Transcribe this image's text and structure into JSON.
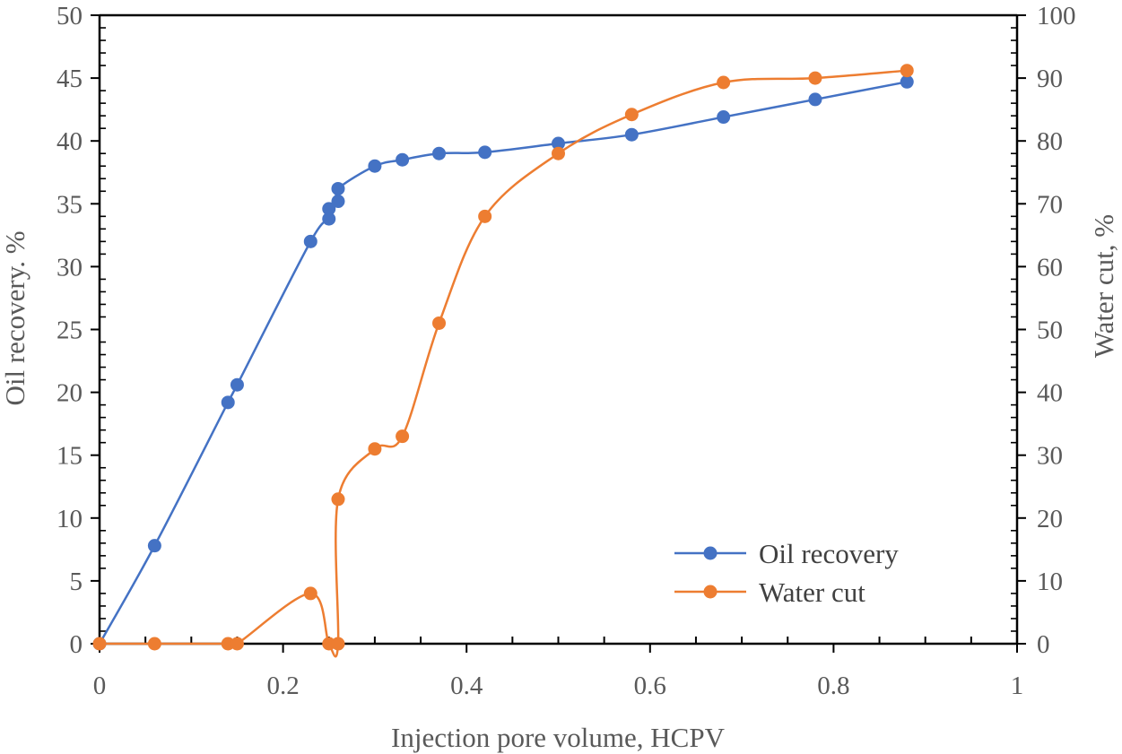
{
  "chart_data": {
    "type": "line",
    "title": "",
    "xlabel": "Injection pore volume, HCPV",
    "ylabel_left": "Oil recovery. %",
    "ylabel_right": "Water cut, %",
    "xlim": [
      0,
      1
    ],
    "ylim_left": [
      0,
      50
    ],
    "ylim_right": [
      0,
      100
    ],
    "x_ticks": [
      "0",
      "0.2",
      "0.4",
      "0.6",
      "0.8",
      "1"
    ],
    "y_left_ticks": [
      "0",
      "5",
      "10",
      "15",
      "20",
      "25",
      "30",
      "35",
      "40",
      "45",
      "50"
    ],
    "y_right_ticks": [
      "0",
      "10",
      "20",
      "30",
      "40",
      "50",
      "60",
      "70",
      "80",
      "90",
      "100"
    ],
    "grid": false,
    "legend_position": "bottom-right",
    "series": [
      {
        "name": "Oil recovery",
        "axis": "left",
        "color": "#4472C4",
        "x": [
          0,
          0.06,
          0.14,
          0.15,
          0.23,
          0.25,
          0.25,
          0.26,
          0.26,
          0.3,
          0.33,
          0.37,
          0.42,
          0.5,
          0.58,
          0.68,
          0.78,
          0.88
        ],
        "y": [
          0,
          7.8,
          19.2,
          20.6,
          32.0,
          33.8,
          34.6,
          35.2,
          36.2,
          38.0,
          38.5,
          39.0,
          39.1,
          39.8,
          40.5,
          41.9,
          43.3,
          44.7
        ]
      },
      {
        "name": "Water cut",
        "axis": "right",
        "color": "#ED7D31",
        "x": [
          0,
          0.06,
          0.14,
          0.15,
          0.23,
          0.25,
          0.26,
          0.26,
          0.3,
          0.33,
          0.37,
          0.42,
          0.5,
          0.58,
          0.68,
          0.78,
          0.88
        ],
        "y": [
          0,
          0,
          0,
          0,
          8.0,
          0,
          0,
          23.0,
          31.0,
          33.0,
          51.0,
          68.0,
          78.0,
          84.2,
          89.3,
          90.0,
          91.2
        ]
      }
    ]
  }
}
